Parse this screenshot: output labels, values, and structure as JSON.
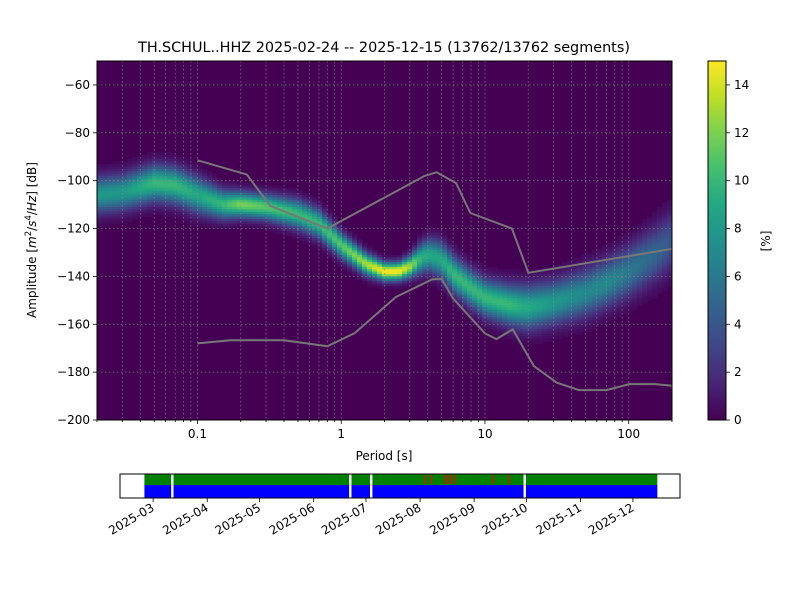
{
  "chart_data": [
    {
      "type": "heatmap",
      "title": "TH.SCHUL..HHZ   2025-02-24 -- 2025-12-15  (13762/13762 segments)",
      "xlabel": "Period [s]",
      "ylabel_prefix": "Amplitude [",
      "ylabel_math": {
        "m": "m",
        "two": "2",
        "slash1": "/",
        "s": "s",
        "four": "4",
        "slash2": "/",
        "hz": "Hz"
      },
      "ylabel_suffix": "] [dB]",
      "x_scale": "log",
      "xlim": [
        0.02,
        200
      ],
      "ylim": [
        -200,
        -50
      ],
      "x_ticks": [
        {
          "value": 0.1,
          "label": "0.1"
        },
        {
          "value": 1,
          "label": "1"
        },
        {
          "value": 10,
          "label": "10"
        },
        {
          "value": 100,
          "label": "100"
        }
      ],
      "y_ticks": [
        {
          "value": -60,
          "label": "−60"
        },
        {
          "value": -80,
          "label": "−80"
        },
        {
          "value": -100,
          "label": "−100"
        },
        {
          "value": -120,
          "label": "−120"
        },
        {
          "value": -140,
          "label": "−140"
        },
        {
          "value": -160,
          "label": "−160"
        },
        {
          "value": -180,
          "label": "−180"
        },
        {
          "value": -200,
          "label": "−200"
        }
      ],
      "grid": true,
      "colormap": "viridis",
      "colorbar": {
        "label": "[%]",
        "range": [
          0,
          15
        ],
        "ticks": [
          {
            "value": 0,
            "label": "0"
          },
          {
            "value": 2,
            "label": "2"
          },
          {
            "value": 4,
            "label": "4"
          },
          {
            "value": 6,
            "label": "6"
          },
          {
            "value": 8,
            "label": "8"
          },
          {
            "value": 10,
            "label": "10"
          },
          {
            "value": 12,
            "label": "12"
          },
          {
            "value": 14,
            "label": "14"
          }
        ]
      },
      "density_ridge": {
        "period": [
          0.02,
          0.03,
          0.05,
          0.07,
          0.1,
          0.15,
          0.2,
          0.3,
          0.5,
          0.7,
          1,
          1.5,
          2,
          2.5,
          3,
          3.5,
          4,
          5,
          6,
          8,
          10,
          15,
          20,
          30,
          50,
          70,
          100,
          150,
          200
        ],
        "amplitude": [
          -106,
          -105,
          -101,
          -102,
          -106,
          -110,
          -110,
          -111,
          -114,
          -118,
          -127,
          -135,
          -138,
          -138,
          -136,
          -133,
          -131,
          -133,
          -139,
          -145,
          -149,
          -152,
          -153,
          -151,
          -147,
          -143,
          -138,
          -131,
          -125
        ],
        "spread": [
          5,
          5,
          5,
          5,
          5,
          4,
          3.5,
          3.5,
          4,
          4,
          3.5,
          3,
          2.5,
          2.5,
          3,
          4,
          4.5,
          5,
          5,
          5,
          5,
          5.5,
          6,
          6,
          6.5,
          6.5,
          7,
          7.5,
          8
        ],
        "peak_percent": [
          8,
          8,
          10,
          10,
          9,
          10,
          12,
          11,
          10,
          10,
          11,
          13,
          15,
          15,
          13,
          10,
          9,
          9,
          10,
          10,
          10,
          10,
          9,
          8,
          7,
          7,
          6,
          5,
          4
        ]
      },
      "reference_curves": [
        {
          "period": [
            0.1,
            0.22,
            0.32,
            0.8,
            3.8,
            4.6,
            6.3,
            7.9,
            15.4,
            20,
            200
          ],
          "amplitude": [
            -91.5,
            -97.4,
            -110.5,
            -120.0,
            -98.0,
            -96.5,
            -101.0,
            -113.5,
            -120.0,
            -138.5,
            -128.5
          ]
        },
        {
          "period": [
            0.1,
            0.17,
            0.4,
            0.8,
            1.24,
            2.4,
            4.3,
            5.0,
            6.0,
            10.0,
            12.0,
            15.6,
            21.9,
            31.6,
            45.0,
            70.0,
            101.0,
            154.0,
            200
          ],
          "amplitude": [
            -168.0,
            -166.7,
            -166.7,
            -169.2,
            -163.7,
            -148.6,
            -141.2,
            -141.1,
            -149.2,
            -163.8,
            -166.2,
            -162.1,
            -177.5,
            -184.4,
            -187.5,
            -187.5,
            -185.0,
            -185.0,
            -185.7
          ]
        }
      ]
    },
    {
      "type": "timeline",
      "x_ticks": [
        "2025-03",
        "2025-04",
        "2025-05",
        "2025-06",
        "2025-07",
        "2025-08",
        "2025-09",
        "2025-10",
        "2025-11",
        "2025-12"
      ],
      "data_range": [
        "2025-02-24",
        "2025-12-15"
      ],
      "gaps": [
        "2025-03-12",
        "2025-06-22",
        "2025-07-04",
        "2025-09-30"
      ],
      "flags": [
        "2025-08-04",
        "2025-08-07",
        "2025-08-15",
        "2025-08-17",
        "2025-08-19",
        "2025-08-21",
        "2025-09-12",
        "2025-09-21"
      ],
      "colors": {
        "upper_band": "#008000",
        "lower_band": "#0000ff",
        "gap": "#ffffff",
        "flag": "#ff0000"
      }
    }
  ],
  "colors": {
    "reference_curve": "#777777",
    "grid": "#8c8c8c",
    "background_cell": "#440154"
  }
}
